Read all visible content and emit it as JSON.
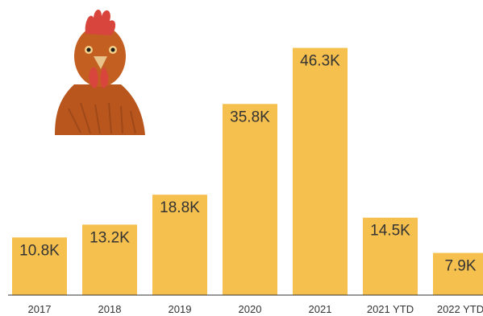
{
  "colors": {
    "bar": "#F5C04E",
    "axis": "#333333",
    "text": "#333333",
    "background": "#FFFFFF"
  },
  "illustration": {
    "icon": "hen-head-icon",
    "colors": {
      "feather": "#B8561E",
      "comb": "#D8453C",
      "beak": "#E8C48C"
    }
  },
  "chart_data": {
    "type": "bar",
    "title": "",
    "xlabel": "",
    "ylabel": "",
    "categories": [
      "2017",
      "2018",
      "2019",
      "2020",
      "2021",
      "2021 YTD",
      "2022 YTD"
    ],
    "values": [
      10800,
      13200,
      18800,
      35800,
      46300,
      14500,
      7900
    ],
    "data_labels": [
      "10.8K",
      "13.2K",
      "18.8K",
      "35.8K",
      "46.3K",
      "14.5K",
      "7.9K"
    ],
    "ylim": [
      0,
      50000
    ],
    "grid": false,
    "legend": "none"
  }
}
